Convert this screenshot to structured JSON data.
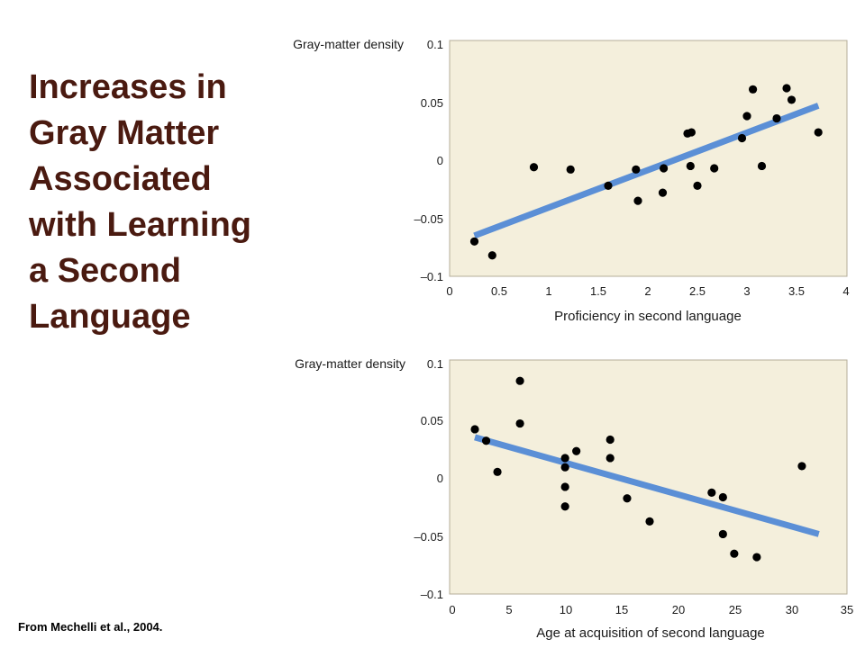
{
  "title_lines": [
    "Increases in",
    "Gray Matter",
    "Associated",
    "with Learning",
    "a Second",
    "Language"
  ],
  "source": "From Mechelli et al., 2004.",
  "colors": {
    "title": "#4a1a10",
    "plot_bg": "#f4efdc",
    "line": "#5b8fd6",
    "points": "#000000"
  },
  "chart_data": [
    {
      "type": "scatter",
      "ylabel": "Gray-matter density",
      "xlabel": "Proficiency in second language",
      "xlim": [
        0,
        4
      ],
      "ylim": [
        -0.1,
        0.1
      ],
      "x_ticks": [
        "0",
        "0.5",
        "1",
        "1.5",
        "2",
        "2.5",
        "3",
        "3.5",
        "4"
      ],
      "y_ticks": [
        "0.1",
        "0.05",
        "0",
        "–0.05",
        "–0.1"
      ],
      "points": [
        {
          "x": 0.25,
          "y": -0.07
        },
        {
          "x": 0.43,
          "y": -0.082
        },
        {
          "x": 0.85,
          "y": -0.006
        },
        {
          "x": 1.22,
          "y": -0.008
        },
        {
          "x": 1.6,
          "y": -0.022
        },
        {
          "x": 1.88,
          "y": -0.008
        },
        {
          "x": 1.9,
          "y": -0.035
        },
        {
          "x": 2.15,
          "y": -0.028
        },
        {
          "x": 2.16,
          "y": -0.007
        },
        {
          "x": 2.4,
          "y": 0.023
        },
        {
          "x": 2.44,
          "y": 0.024
        },
        {
          "x": 2.43,
          "y": -0.005
        },
        {
          "x": 2.5,
          "y": -0.022
        },
        {
          "x": 2.67,
          "y": -0.007
        },
        {
          "x": 2.95,
          "y": 0.019
        },
        {
          "x": 3.0,
          "y": 0.038
        },
        {
          "x": 3.06,
          "y": 0.061
        },
        {
          "x": 3.15,
          "y": -0.005
        },
        {
          "x": 3.3,
          "y": 0.036
        },
        {
          "x": 3.4,
          "y": 0.062
        },
        {
          "x": 3.45,
          "y": 0.052
        },
        {
          "x": 3.72,
          "y": 0.024
        }
      ],
      "fit": {
        "x": [
          0.25,
          3.72
        ],
        "y": [
          -0.065,
          0.047
        ]
      }
    },
    {
      "type": "scatter",
      "ylabel": "Gray-matter density",
      "xlabel": "Age at acquisition of second language",
      "xlim": [
        0,
        35
      ],
      "ylim": [
        -0.1,
        0.1
      ],
      "x_ticks": [
        "0",
        "5",
        "10",
        "15",
        "20",
        "25",
        "30",
        "35"
      ],
      "y_ticks": [
        "0.1",
        "0.05",
        "0",
        "–0.05",
        "–0.1"
      ],
      "points": [
        {
          "x": 2,
          "y": 0.043
        },
        {
          "x": 3,
          "y": 0.033
        },
        {
          "x": 4,
          "y": 0.006
        },
        {
          "x": 6,
          "y": 0.085
        },
        {
          "x": 6,
          "y": 0.048
        },
        {
          "x": 10,
          "y": 0.018
        },
        {
          "x": 10,
          "y": 0.01
        },
        {
          "x": 10,
          "y": -0.007
        },
        {
          "x": 10,
          "y": -0.024
        },
        {
          "x": 11,
          "y": 0.024
        },
        {
          "x": 14,
          "y": 0.034
        },
        {
          "x": 14,
          "y": 0.018
        },
        {
          "x": 15.5,
          "y": -0.017
        },
        {
          "x": 17.5,
          "y": -0.037
        },
        {
          "x": 23,
          "y": -0.012
        },
        {
          "x": 24,
          "y": -0.016
        },
        {
          "x": 24,
          "y": -0.048
        },
        {
          "x": 25,
          "y": -0.065
        },
        {
          "x": 27,
          "y": -0.068
        },
        {
          "x": 31,
          "y": 0.011
        }
      ],
      "fit": {
        "x": [
          2,
          32.5
        ],
        "y": [
          0.036,
          -0.048
        ]
      }
    }
  ]
}
